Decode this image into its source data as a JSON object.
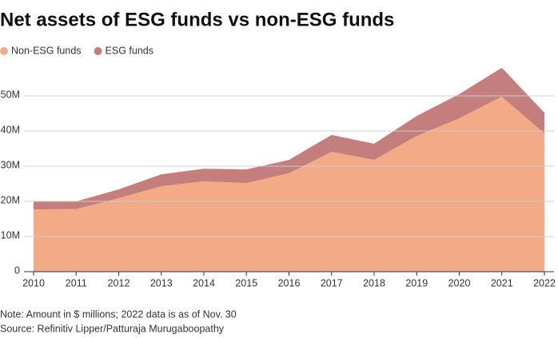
{
  "chart_data": {
    "type": "stacked_area",
    "title": "Net assets of ESG funds vs non-ESG funds",
    "x": [
      2010,
      2011,
      2012,
      2013,
      2014,
      2015,
      2016,
      2017,
      2018,
      2019,
      2020,
      2021,
      2022
    ],
    "series": [
      {
        "name": "Non-ESG funds",
        "color": "#f2aa87",
        "values": [
          17.7,
          17.8,
          20.9,
          24.3,
          25.7,
          25.2,
          28,
          34.1,
          31.8,
          38.6,
          43.6,
          49.8,
          39.3
        ]
      },
      {
        "name": "ESG funds",
        "color": "#c47e7e",
        "values": [
          2.3,
          2.2,
          2.5,
          3.4,
          3.6,
          3.9,
          3.8,
          4.8,
          4.6,
          5.7,
          6.9,
          8.2,
          5.9
        ]
      }
    ],
    "xlim": [
      2010,
      2022
    ],
    "xticks": [
      2010,
      2011,
      2012,
      2013,
      2014,
      2015,
      2016,
      2017,
      2018,
      2019,
      2020,
      2021,
      2022
    ],
    "ylim": [
      0,
      60
    ],
    "yticks": [
      0,
      {
        "value": 10,
        "label": "10M"
      },
      {
        "value": 20,
        "label": "20M"
      },
      {
        "value": 30,
        "label": "30M"
      },
      {
        "value": 40,
        "label": "40M"
      },
      {
        "value": 50,
        "label": "50M"
      }
    ],
    "grid": true,
    "note": "Note: Amount in $ millions; 2022 data is as of Nov. 30",
    "source": "Source: Refinitiv Lipper/Patturaja Murugaboopathy"
  }
}
